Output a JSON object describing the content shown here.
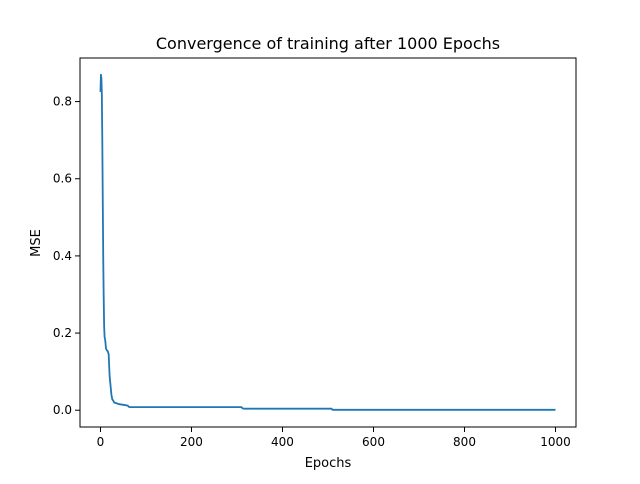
{
  "chart_data": {
    "type": "line",
    "title": "Convergence of training after 1000 Epochs",
    "xlabel": "Epochs",
    "ylabel": "MSE",
    "xlim": [
      -45,
      1045
    ],
    "ylim": [
      -0.0435,
      0.913
    ],
    "grid": false,
    "xticks": [
      {
        "value": 0,
        "label": "0"
      },
      {
        "value": 200,
        "label": "200"
      },
      {
        "value": 400,
        "label": "400"
      },
      {
        "value": 600,
        "label": "600"
      },
      {
        "value": 800,
        "label": "800"
      },
      {
        "value": 1000,
        "label": "1000"
      }
    ],
    "yticks": [
      {
        "value": 0.0,
        "label": "0.0"
      },
      {
        "value": 0.2,
        "label": "0.2"
      },
      {
        "value": 0.4,
        "label": "0.4"
      },
      {
        "value": 0.6,
        "label": "0.6"
      },
      {
        "value": 0.8,
        "label": "0.8"
      }
    ],
    "series": [
      {
        "color": "#1f77b4",
        "x": [
          0,
          1,
          2,
          3,
          4,
          5,
          6,
          7,
          8,
          9,
          10,
          11,
          12,
          14,
          16,
          18,
          20,
          22,
          24,
          26,
          28,
          30,
          35,
          40,
          45,
          50,
          55,
          60,
          62,
          65,
          70,
          80,
          100,
          150,
          200,
          250,
          300,
          310,
          312,
          315,
          320,
          350,
          400,
          450,
          500,
          508,
          510,
          515,
          520,
          600,
          700,
          800,
          900,
          1000
        ],
        "y": [
          0.825,
          0.87,
          0.86,
          0.82,
          0.7,
          0.55,
          0.4,
          0.3,
          0.22,
          0.19,
          0.185,
          0.175,
          0.16,
          0.155,
          0.153,
          0.145,
          0.09,
          0.065,
          0.04,
          0.028,
          0.025,
          0.02,
          0.018,
          0.016,
          0.015,
          0.014,
          0.013,
          0.012,
          0.009,
          0.008,
          0.008,
          0.008,
          0.008,
          0.008,
          0.008,
          0.008,
          0.008,
          0.008,
          0.005,
          0.004,
          0.004,
          0.004,
          0.004,
          0.004,
          0.004,
          0.004,
          0.001,
          0.001,
          0.001,
          0.001,
          0.001,
          0.001,
          0.001,
          0.001
        ]
      }
    ]
  }
}
